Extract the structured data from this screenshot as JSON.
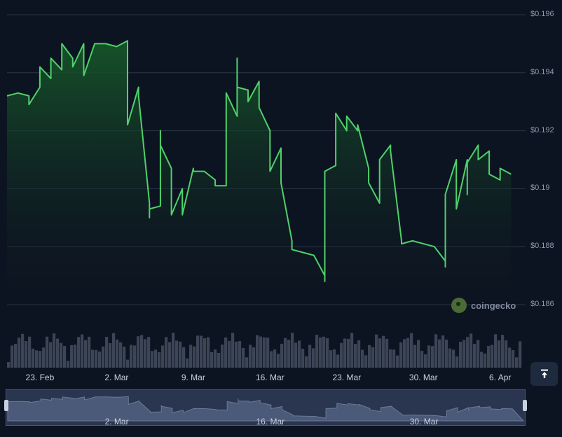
{
  "watermark": {
    "text": "coingecko"
  },
  "top_button": {
    "icon": "arrow-up-to-line-icon"
  },
  "colors": {
    "line": "#4fd16a",
    "fill_top": "#175a2a",
    "grid": "#2a3446",
    "volume": "#3c4556",
    "background": "#0d1421"
  },
  "chart_data": {
    "type": "line",
    "title": "",
    "xlabel": "",
    "ylabel": "",
    "y_ticks": [
      "$0.196",
      "$0.194",
      "$0.192",
      "$0.19",
      "$0.188",
      "$0.186"
    ],
    "y_tick_values": [
      0.196,
      0.194,
      0.192,
      0.19,
      0.188,
      0.186
    ],
    "ylim": [
      0.186,
      0.196
    ],
    "x_range": [
      "2025-02-20",
      "2025-04-08"
    ],
    "x_ticks": [
      {
        "date": "2025-02-23",
        "label": "23. Feb"
      },
      {
        "date": "2025-03-02",
        "label": "2. Mar"
      },
      {
        "date": "2025-03-09",
        "label": "9. Mar"
      },
      {
        "date": "2025-03-16",
        "label": "16. Mar"
      },
      {
        "date": "2025-03-23",
        "label": "23. Mar"
      },
      {
        "date": "2025-03-30",
        "label": "30. Mar"
      },
      {
        "date": "2025-04-06",
        "label": "6. Apr"
      }
    ],
    "navigator_ticks": [
      {
        "date": "2025-03-02",
        "label": "2. Mar"
      },
      {
        "date": "2025-03-16",
        "label": "16. Mar"
      },
      {
        "date": "2025-03-30",
        "label": "30. Mar"
      }
    ],
    "grid": true,
    "legend": "none",
    "series": [
      {
        "points": [
          [
            "2025-02-20",
            0.1932
          ],
          [
            "2025-02-21",
            0.1933
          ],
          [
            "2025-02-22",
            0.1932
          ],
          [
            "2025-02-22",
            0.1929
          ],
          [
            "2025-02-23",
            0.1935
          ],
          [
            "2025-02-23",
            0.1942
          ],
          [
            "2025-02-24",
            0.1938
          ],
          [
            "2025-02-24",
            0.1945
          ],
          [
            "2025-02-25",
            0.1941
          ],
          [
            "2025-02-25",
            0.195
          ],
          [
            "2025-02-26",
            0.1945
          ],
          [
            "2025-02-26",
            0.1942
          ],
          [
            "2025-02-27",
            0.195
          ],
          [
            "2025-02-27",
            0.1939
          ],
          [
            "2025-02-28",
            0.195
          ],
          [
            "2025-02-28",
            0.195
          ],
          [
            "2025-03-01",
            0.195
          ],
          [
            "2025-03-02",
            0.1949
          ],
          [
            "2025-03-03",
            0.1951
          ],
          [
            "2025-03-03",
            0.1948
          ],
          [
            "2025-03-03",
            0.1922
          ],
          [
            "2025-03-04",
            0.1935
          ],
          [
            "2025-03-04",
            0.1932
          ],
          [
            "2025-03-05",
            0.1895
          ],
          [
            "2025-03-05",
            0.189
          ],
          [
            "2025-03-05",
            0.1893
          ],
          [
            "2025-03-06",
            0.1894
          ],
          [
            "2025-03-06",
            0.192
          ],
          [
            "2025-03-06",
            0.1915
          ],
          [
            "2025-03-07",
            0.1907
          ],
          [
            "2025-03-07",
            0.1891
          ],
          [
            "2025-03-08",
            0.19
          ],
          [
            "2025-03-08",
            0.1895
          ],
          [
            "2025-03-08",
            0.1891
          ],
          [
            "2025-03-09",
            0.1907
          ],
          [
            "2025-03-09",
            0.1906
          ],
          [
            "2025-03-10",
            0.1906
          ],
          [
            "2025-03-11",
            0.1903
          ],
          [
            "2025-03-11",
            0.1901
          ],
          [
            "2025-03-12",
            0.1901
          ],
          [
            "2025-03-12",
            0.1928
          ],
          [
            "2025-03-12",
            0.1933
          ],
          [
            "2025-03-13",
            0.1925
          ],
          [
            "2025-03-13",
            0.1945
          ],
          [
            "2025-03-13",
            0.1935
          ],
          [
            "2025-03-14",
            0.1934
          ],
          [
            "2025-03-14",
            0.193
          ],
          [
            "2025-03-15",
            0.1937
          ],
          [
            "2025-03-15",
            0.1928
          ],
          [
            "2025-03-16",
            0.192
          ],
          [
            "2025-03-16",
            0.1906
          ],
          [
            "2025-03-17",
            0.1914
          ],
          [
            "2025-03-17",
            0.1902
          ],
          [
            "2025-03-18",
            0.1882
          ],
          [
            "2025-03-18",
            0.1879
          ],
          [
            "2025-03-19",
            0.1878
          ],
          [
            "2025-03-20",
            0.1877
          ],
          [
            "2025-03-21",
            0.187
          ],
          [
            "2025-03-21",
            0.1868
          ],
          [
            "2025-03-21",
            0.19
          ],
          [
            "2025-03-21",
            0.1906
          ],
          [
            "2025-03-22",
            0.1908
          ],
          [
            "2025-03-22",
            0.1917
          ],
          [
            "2025-03-22",
            0.1926
          ],
          [
            "2025-03-23",
            0.192
          ],
          [
            "2025-03-23",
            0.1925
          ],
          [
            "2025-03-24",
            0.192
          ],
          [
            "2025-03-24",
            0.1922
          ],
          [
            "2025-03-25",
            0.1907
          ],
          [
            "2025-03-25",
            0.1902
          ],
          [
            "2025-03-26",
            0.1895
          ],
          [
            "2025-03-26",
            0.1908
          ],
          [
            "2025-03-26",
            0.191
          ],
          [
            "2025-03-27",
            0.1915
          ],
          [
            "2025-03-27",
            0.1913
          ],
          [
            "2025-03-28",
            0.1882
          ],
          [
            "2025-03-28",
            0.1881
          ],
          [
            "2025-03-29",
            0.1882
          ],
          [
            "2025-03-29",
            0.1882
          ],
          [
            "2025-03-31",
            0.188
          ],
          [
            "2025-04-01",
            0.1875
          ],
          [
            "2025-04-01",
            0.1873
          ],
          [
            "2025-04-01",
            0.1898
          ],
          [
            "2025-04-02",
            0.191
          ],
          [
            "2025-04-02",
            0.1905
          ],
          [
            "2025-04-02",
            0.1893
          ],
          [
            "2025-04-03",
            0.191
          ],
          [
            "2025-04-03",
            0.1898
          ],
          [
            "2025-04-03",
            0.1909
          ],
          [
            "2025-04-04",
            0.1915
          ],
          [
            "2025-04-04",
            0.191
          ],
          [
            "2025-04-05",
            0.1913
          ],
          [
            "2025-04-05",
            0.1909
          ],
          [
            "2025-04-05",
            0.1905
          ],
          [
            "2025-04-06",
            0.1903
          ],
          [
            "2025-04-06",
            0.1907
          ],
          [
            "2025-04-07",
            0.1905
          ],
          [
            "2025-04-07",
            0.1905
          ]
        ]
      }
    ]
  }
}
